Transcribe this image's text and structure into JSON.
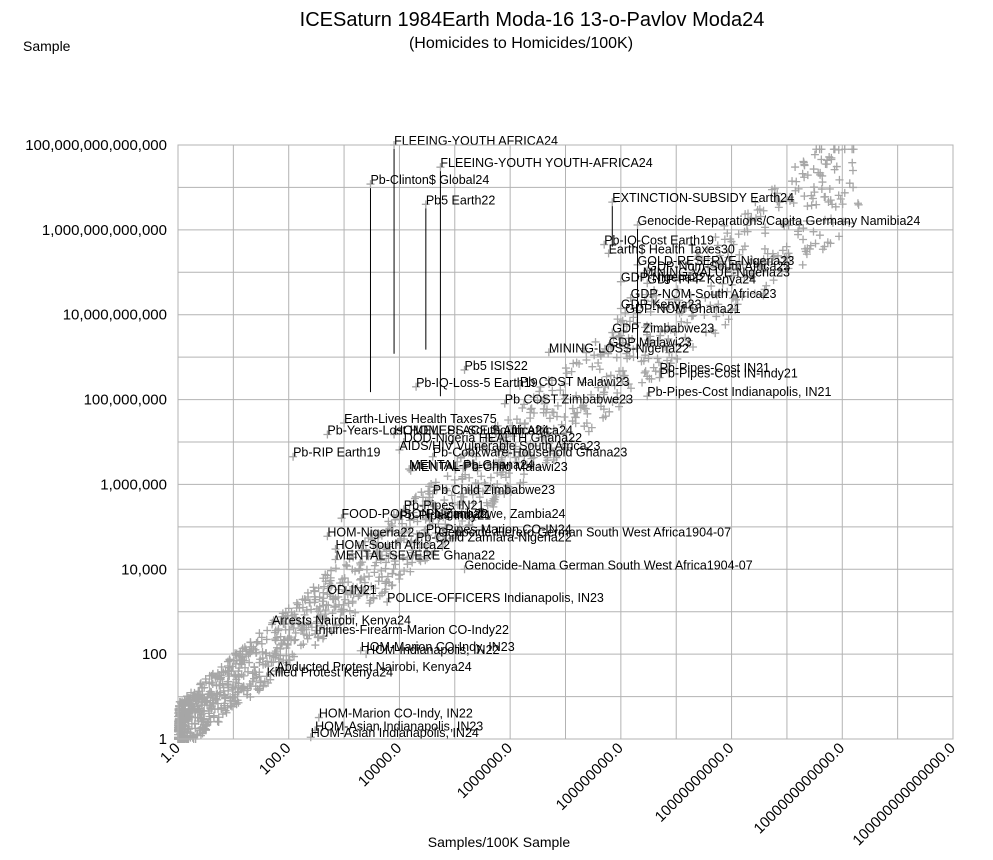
{
  "chart_data": {
    "type": "scatter",
    "title": "ICESaturn 1984Earth Moda-16 13-o-Pavlov Moda24",
    "subtitle": "(Homicides to Homicides/100K)",
    "corner_label": "Sample",
    "xlabel": "Samples/100K Sample",
    "ylabel": "",
    "x_scale": "log",
    "y_scale": "log",
    "xlim": [
      1,
      100000000000000
    ],
    "ylim": [
      1,
      100000000000000
    ],
    "x_ticks": [
      "1.0",
      "100.0",
      "10000.0",
      "1000000.0",
      "100000000.0",
      "10000000000.0",
      "1000000000000.0",
      "100000000000000.0"
    ],
    "y_ticks": [
      "1",
      "100",
      "10,000",
      "1,000,000",
      "100,000,000",
      "10,000,000,000",
      "1,000,000,000,000",
      "100,000,000,000,000"
    ],
    "grid": true,
    "marker": "+",
    "marker_color": "#a6a6a6",
    "annotations": [
      {
        "text": "FLEEING-YOUTH AFRICA24",
        "x": 8000,
        "y": 100000000000000.0,
        "leader_to_y": 1200000000.0
      },
      {
        "text": "FLEEING-YOUTH YOUTH-AFRICA24",
        "x": 55000,
        "y": 30000000000000.0,
        "leader_to_y": 120000000.0
      },
      {
        "text": "Pb-Clinton$ Global24",
        "x": 3000,
        "y": 12000000000000.0,
        "leader_to_y": 150000000.0
      },
      {
        "text": "Pb5 Earth22",
        "x": 30000,
        "y": 4000000000000.0,
        "leader_to_y": 1500000000.0
      },
      {
        "text": "EXTINCTION-SUBSIDY Earth24",
        "x": 70000000,
        "y": 4500000000000.0,
        "leader_to_y": 400000000000.0
      },
      {
        "text": "Genocide-Reparations/Capita Germany Namibia24",
        "x": 200000000,
        "y": 1300000000000.0,
        "leader_to_y": 900000000.0
      },
      {
        "text": "Pb-IQ-Cost Earth19",
        "x": 50000000,
        "y": 450000000000.0
      },
      {
        "text": "Earth$ Health Taxes30",
        "x": 60000000,
        "y": 280000000000.0
      },
      {
        "text": "GOLD-RESERVE-Nigeria23",
        "x": 200000000,
        "y": 150000000000.0
      },
      {
        "text": "GDP-Nom-South Africa23",
        "x": 300000000,
        "y": 110000000000.0
      },
      {
        "text": "MINING-VALUE-Nigeria23",
        "x": 250000000,
        "y": 80000000000.0
      },
      {
        "text": "GDP-Nigeria22",
        "x": 100000000,
        "y": 60000000000.0
      },
      {
        "text": "GDP-PPP Kenya24",
        "x": 300000000,
        "y": 55000000000.0
      },
      {
        "text": "GDP-NOM-South Africa23",
        "x": 150000000,
        "y": 25000000000.0
      },
      {
        "text": "GDP-Kenya23",
        "x": 100000000,
        "y": 14000000000.0
      },
      {
        "text": "GDP-NOM Ghana21",
        "x": 120000000,
        "y": 11000000000.0
      },
      {
        "text": "GDP Zimbabwe23",
        "x": 70000000,
        "y": 3800000000.0
      },
      {
        "text": "GDP Malawi23",
        "x": 60000000,
        "y": 1800000000.0
      },
      {
        "text": "MINING-LOSS-Nigeria22",
        "x": 5000000,
        "y": 1300000000.0
      },
      {
        "text": "Pb-Pipes-Cost IN21",
        "x": 500000000,
        "y": 450000000.0
      },
      {
        "text": "Pb-Pipes-Cost IN-Indy21",
        "x": 500000000,
        "y": 330000000.0
      },
      {
        "text": "Pb-Pipes-Cost Indianapolis, IN21",
        "x": 300000000,
        "y": 120000000.0
      },
      {
        "text": "Pb5 ISIS22",
        "x": 150000,
        "y": 500000000.0
      },
      {
        "text": "Pb-IQ-Loss-5 Earth19",
        "x": 20000,
        "y": 200000000.0
      },
      {
        "text": "Pb COST Malawi23",
        "x": 1500000,
        "y": 210000000.0
      },
      {
        "text": "Pb COST Zimbabwe23",
        "x": 800000,
        "y": 80000000.0
      },
      {
        "text": "Earth-Lives Health Taxes75",
        "x": 1000,
        "y": 28000000.0
      },
      {
        "text": "Pb-Years-Lost HOMEPLACE South Africa24",
        "x": 500,
        "y": 15000000.0
      },
      {
        "text": "HOMELESS-South Africa24",
        "x": 8000,
        "y": 15000000.0
      },
      {
        "text": "DOD-Nigeria HEALTH Ghana22",
        "x": 12000,
        "y": 10000000.0
      },
      {
        "text": "AIDS/HIV Vulnerable South Africa23",
        "x": 10000,
        "y": 6500000.0
      },
      {
        "text": "Pb-Cookware-Household Ghana23",
        "x": 40000,
        "y": 4500000.0
      },
      {
        "text": "Pb-RIP Earth19",
        "x": 120,
        "y": 4500000.0
      },
      {
        "text": "MENTAL-Pb-Ghana24",
        "x": 15000,
        "y": 2300000.0
      },
      {
        "text": "MENTAL Pb-Child Malawi23",
        "x": 16000,
        "y": 2100000.0
      },
      {
        "text": "Pb Child Zimbabwe23",
        "x": 40000,
        "y": 600000.0
      },
      {
        "text": "Pb-Pipes IN21",
        "x": 12000,
        "y": 260000.0
      },
      {
        "text": "FOOD-POISON-Nigeria22",
        "x": 900,
        "y": 160000.0
      },
      {
        "text": "Pb-Pipes Indy21",
        "x": 10000,
        "y": 150000.0
      },
      {
        "text": "Pb-Zimbabwe, Zambia24",
        "x": 30000,
        "y": 160000.0
      },
      {
        "text": "Pb-Pipes-Marion CO-IN24",
        "x": 30000,
        "y": 70000.0
      },
      {
        "text": "Genocide-Herero German South West Africa1904-07",
        "x": 50000,
        "y": 60000.0
      },
      {
        "text": "HOM-Nigeria22",
        "x": 500,
        "y": 60000.0
      },
      {
        "text": "Pb-Child Zamfara-Nigeria22",
        "x": 20000,
        "y": 45000.0
      },
      {
        "text": "HOM-South Africa22",
        "x": 700,
        "y": 30000.0
      },
      {
        "text": "MENTAL-SEVERE Ghana22",
        "x": 700,
        "y": 17000.0
      },
      {
        "text": "Genocide-Nama German South West Africa1904-07",
        "x": 150000,
        "y": 10000.0
      },
      {
        "text": "OD-IN21",
        "x": 500,
        "y": 2600.0
      },
      {
        "text": "POLICE-OFFICERS Indianapolis, IN23",
        "x": 6000,
        "y": 1700.0
      },
      {
        "text": "Arrests Nairobi, Kenya24",
        "x": 50,
        "y": 500
      },
      {
        "text": "Injuries-Firearm-Marion CO-Indy22",
        "x": 300,
        "y": 300
      },
      {
        "text": "HOM-Marion CO-Indy, IN23",
        "x": 2000,
        "y": 120
      },
      {
        "text": "HOM-Indianapolis, IN22",
        "x": 2500,
        "y": 100
      },
      {
        "text": "Abducted Protest Nairobi, Kenya24",
        "x": 60,
        "y": 40
      },
      {
        "text": "Killed Protest Kenya24",
        "x": 40,
        "y": 30
      },
      {
        "text": "HOM-Marion CO-Indy, IN22",
        "x": 350,
        "y": 3.2
      },
      {
        "text": "HOM-Asian Indianapolis, IN23",
        "x": 300,
        "y": 1.6
      },
      {
        "text": "HOM-Asian Indianapolis, IN24",
        "x": 250,
        "y": 1.1
      }
    ]
  }
}
